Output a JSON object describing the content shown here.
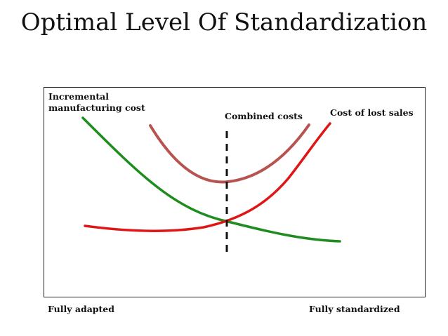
{
  "title": "Optimal Level Of Standardization",
  "labels": {
    "incremental_line1": "Incremental",
    "incremental_line2": "manufacturing cost",
    "combined": "Combined costs",
    "lost_sales": "Cost of lost sales",
    "fully_adapted": "Fully adapted",
    "fully_standardized": "Fully standardized"
  },
  "colors": {
    "manufacturing_curve": "#1e8c1e",
    "lost_sales_curve": "#e01515",
    "combined_curve": "#b85450",
    "optimum_line": "#111111"
  }
}
